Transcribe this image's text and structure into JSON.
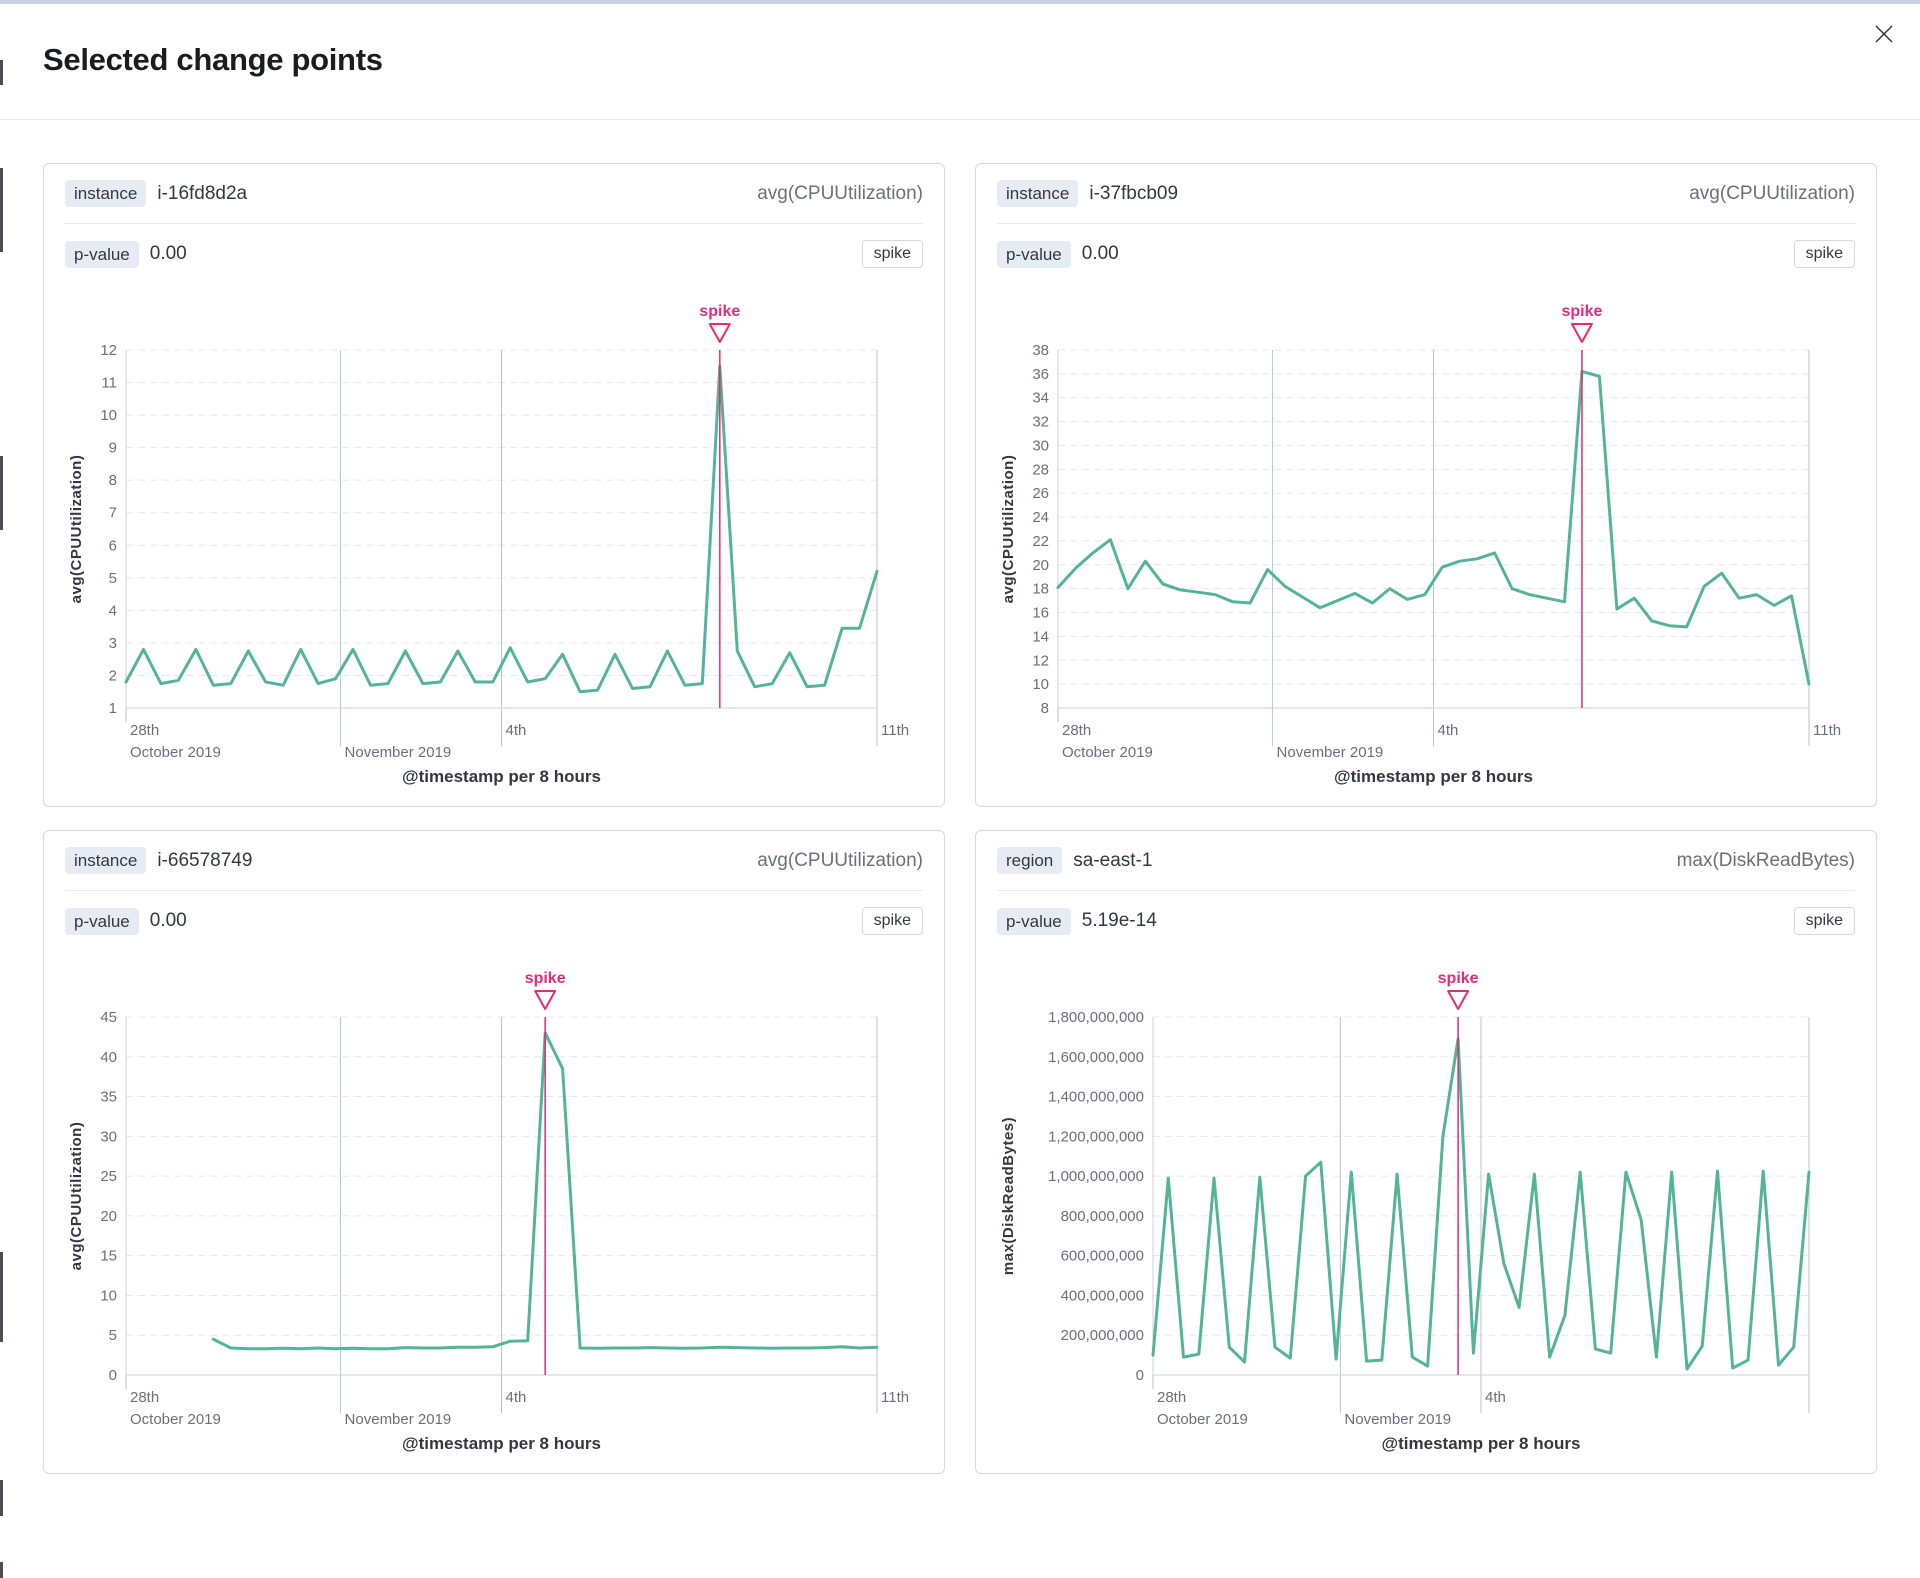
{
  "modal": {
    "title": "Selected change points",
    "close_icon": "close-icon"
  },
  "theme": {
    "line": "#54b399",
    "annotation": "#e22c76",
    "grid": "#e4e8f0",
    "vgrid": "#bcc2cc",
    "axis": "#ccd1da",
    "tick_text": "#69707d",
    "title_text": "#343741"
  },
  "chart_data": [
    {
      "type": "line",
      "header": {
        "key_label": "instance",
        "key_value": "i-16fd8d2a",
        "metric": "avg(CPUUtilization)"
      },
      "stats": {
        "p_label": "p-value",
        "p_value": "0.00",
        "change_type": "spike"
      },
      "xlabel": "@timestamp per 8 hours",
      "ylabel": "avg(CPUUtilization)",
      "ylim": [
        1,
        12
      ],
      "y_ticks": [
        1,
        2,
        3,
        4,
        5,
        6,
        7,
        8,
        9,
        10,
        11,
        12
      ],
      "y_tick_format": "plain",
      "x_ticks": [
        {
          "f": 0,
          "day": "28th",
          "month": "October 2019"
        },
        {
          "f": 0.2857,
          "day": "",
          "month": "November 2019"
        },
        {
          "f": 0.5,
          "day": "4th",
          "month": ""
        },
        {
          "f": 1,
          "day": "11th",
          "month": ""
        }
      ],
      "x_gridlines": [
        0.2857,
        0.5,
        1
      ],
      "annotation": {
        "label": "spike",
        "index": 34
      },
      "values": [
        1.8,
        2.8,
        1.75,
        1.85,
        2.8,
        1.7,
        1.75,
        2.75,
        1.8,
        1.7,
        2.8,
        1.75,
        1.9,
        2.8,
        1.7,
        1.75,
        2.75,
        1.75,
        1.8,
        2.75,
        1.8,
        1.8,
        2.85,
        1.8,
        1.9,
        2.65,
        1.5,
        1.55,
        2.65,
        1.6,
        1.65,
        2.75,
        1.7,
        1.75,
        11.5,
        2.75,
        1.65,
        1.75,
        2.7,
        1.65,
        1.7,
        3.45,
        3.45,
        5.2
      ]
    },
    {
      "type": "line",
      "header": {
        "key_label": "instance",
        "key_value": "i-37fbcb09",
        "metric": "avg(CPUUtilization)"
      },
      "stats": {
        "p_label": "p-value",
        "p_value": "0.00",
        "change_type": "spike"
      },
      "xlabel": "@timestamp per 8 hours",
      "ylabel": "avg(CPUUtilization)",
      "ylim": [
        8,
        38
      ],
      "y_ticks": [
        8,
        10,
        12,
        14,
        16,
        18,
        20,
        22,
        24,
        26,
        28,
        30,
        32,
        34,
        36,
        38
      ],
      "y_tick_format": "plain",
      "x_ticks": [
        {
          "f": 0,
          "day": "28th",
          "month": "October 2019"
        },
        {
          "f": 0.2857,
          "day": "",
          "month": "November 2019"
        },
        {
          "f": 0.5,
          "day": "4th",
          "month": ""
        },
        {
          "f": 1,
          "day": "11th",
          "month": ""
        }
      ],
      "x_gridlines": [
        0.2857,
        0.5,
        1
      ],
      "annotation": {
        "label": "spike",
        "index": 30
      },
      "values": [
        18.1,
        19.7,
        21.0,
        22.1,
        18.0,
        20.3,
        18.4,
        17.9,
        17.7,
        17.5,
        16.9,
        16.8,
        19.6,
        18.2,
        17.3,
        16.4,
        17.0,
        17.6,
        16.8,
        18.0,
        17.1,
        17.5,
        19.8,
        20.3,
        20.5,
        21.0,
        18.0,
        17.5,
        17.2,
        16.9,
        36.2,
        35.8,
        16.3,
        17.2,
        15.3,
        14.9,
        14.8,
        18.2,
        19.3,
        17.2,
        17.5,
        16.6,
        17.4,
        10.0
      ]
    },
    {
      "type": "line",
      "header": {
        "key_label": "instance",
        "key_value": "i-66578749",
        "metric": "avg(CPUUtilization)"
      },
      "stats": {
        "p_label": "p-value",
        "p_value": "0.00",
        "change_type": "spike"
      },
      "xlabel": "@timestamp per 8 hours",
      "ylabel": "avg(CPUUtilization)",
      "ylim": [
        0,
        45
      ],
      "y_ticks": [
        0,
        5,
        10,
        15,
        20,
        25,
        30,
        35,
        40,
        45
      ],
      "y_tick_format": "plain",
      "x_ticks": [
        {
          "f": 0,
          "day": "28th",
          "month": "October 2019"
        },
        {
          "f": 0.2857,
          "day": "",
          "month": "November 2019"
        },
        {
          "f": 0.5,
          "day": "4th",
          "month": ""
        },
        {
          "f": 1,
          "day": "11th",
          "month": ""
        }
      ],
      "x_gridlines": [
        0.2857,
        0.5,
        1
      ],
      "annotation": {
        "label": "spike",
        "index": 24
      },
      "values": [
        null,
        null,
        null,
        null,
        null,
        4.5,
        3.4,
        3.3,
        3.3,
        3.35,
        3.3,
        3.4,
        3.3,
        3.35,
        3.3,
        3.3,
        3.45,
        3.4,
        3.4,
        3.5,
        3.5,
        3.55,
        4.25,
        4.3,
        43.0,
        38.5,
        3.4,
        3.35,
        3.4,
        3.4,
        3.45,
        3.4,
        3.35,
        3.4,
        3.5,
        3.45,
        3.4,
        3.35,
        3.4,
        3.4,
        3.45,
        3.55,
        3.4,
        3.5
      ]
    },
    {
      "type": "line",
      "header": {
        "key_label": "region",
        "key_value": "sa-east-1",
        "metric": "max(DiskReadBytes)"
      },
      "stats": {
        "p_label": "p-value",
        "p_value": "5.19e-14",
        "change_type": "spike"
      },
      "xlabel": "@timestamp per 8 hours",
      "ylabel": "max(DiskReadBytes)",
      "ylim": [
        0,
        1800000000
      ],
      "y_ticks": [
        0,
        200000000,
        400000000,
        600000000,
        800000000,
        1000000000,
        1200000000,
        1400000000,
        1600000000,
        1800000000
      ],
      "y_tick_format": "comma",
      "x_ticks": [
        {
          "f": 0,
          "day": "28th",
          "month": "October 2019"
        },
        {
          "f": 0.2857,
          "day": "",
          "month": "November 2019"
        },
        {
          "f": 0.5,
          "day": "4th",
          "month": ""
        }
      ],
      "x_gridlines": [
        0.2857,
        0.5,
        1
      ],
      "annotation": {
        "label": "spike",
        "index": 20
      },
      "values": [
        100000000,
        990000000,
        90000000,
        105000000,
        990000000,
        140000000,
        65000000,
        995000000,
        140000000,
        85000000,
        1000000000,
        1070000000,
        80000000,
        1020000000,
        70000000,
        75000000,
        1010000000,
        90000000,
        45000000,
        1200000000,
        1690000000,
        110000000,
        1010000000,
        560000000,
        340000000,
        1010000000,
        90000000,
        300000000,
        1020000000,
        130000000,
        110000000,
        1020000000,
        780000000,
        90000000,
        1020000000,
        30000000,
        145000000,
        1025000000,
        35000000,
        75000000,
        1025000000,
        50000000,
        140000000,
        1020000000
      ]
    }
  ]
}
